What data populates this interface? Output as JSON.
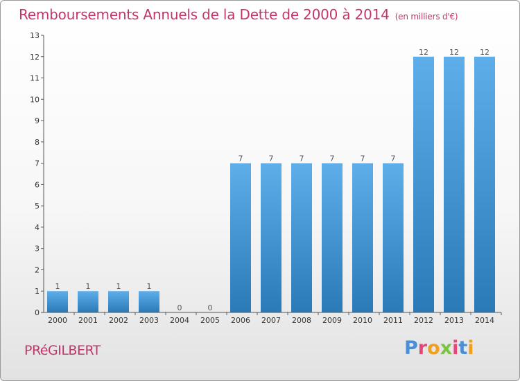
{
  "title": "Remboursements Annuels de la Dette de 2000 à 2014",
  "subtitle": "(en milliers d'€)",
  "commune": "PRéGILBERT",
  "logo": {
    "text": "Proxiti",
    "colors": [
      "#4a8fd6",
      "#e8457a",
      "#f0a020",
      "#7cc243",
      "#e8457a",
      "#4a8fd6",
      "#f0a020"
    ]
  },
  "colors": {
    "bar_top": "#5eaeea",
    "bar_bottom": "#2a7ab8",
    "axis": "#555555",
    "title": "#c2366b"
  },
  "chart_data": {
    "type": "bar",
    "categories": [
      "2000",
      "2001",
      "2002",
      "2003",
      "2004",
      "2005",
      "2006",
      "2007",
      "2008",
      "2009",
      "2010",
      "2011",
      "2012",
      "2013",
      "2014"
    ],
    "values": [
      1,
      1,
      1,
      1,
      0,
      0,
      7,
      7,
      7,
      7,
      7,
      7,
      12,
      12,
      12
    ],
    "title": "Remboursements Annuels de la Dette de 2000 à 2014",
    "xlabel": "",
    "ylabel": "",
    "ylim": [
      0,
      13
    ],
    "yticks": [
      0,
      1,
      2,
      3,
      4,
      5,
      6,
      7,
      8,
      9,
      10,
      11,
      12,
      13
    ],
    "grid": false,
    "data_labels": true
  }
}
